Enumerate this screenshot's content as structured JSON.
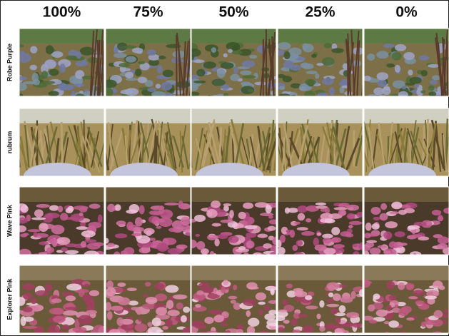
{
  "columns": [
    "100%",
    "75%",
    "50%",
    "25%",
    "0%"
  ],
  "rows": [
    "Robe Purple",
    "rubrum",
    "Wave Pink",
    "Explorer Pink"
  ]
}
